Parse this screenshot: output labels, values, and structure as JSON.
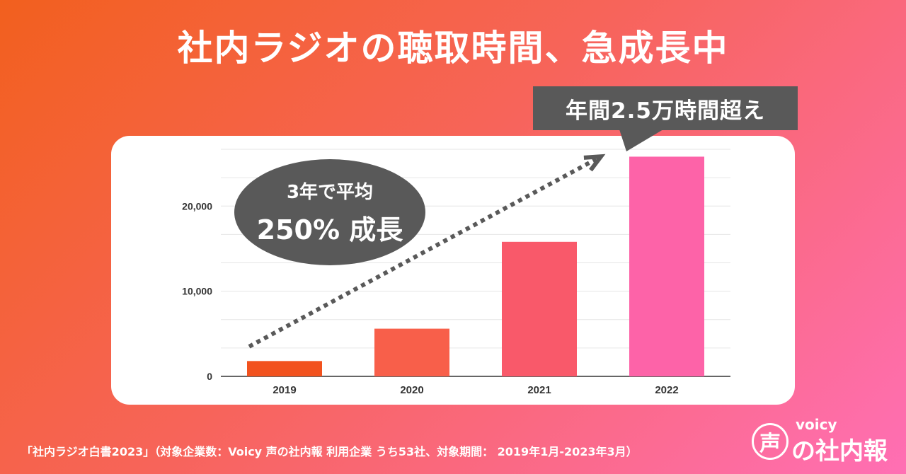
{
  "page": {
    "title": "社内ラジオの聴取時間、急成長中",
    "footer_note": "「社内ラジオ白書2023」（対象企業数：Voicy 声の社内報 利用企業 うち53社、対象期間： 2019年1月-2023年3月）"
  },
  "callout": {
    "text": "年間2.5万時間超え"
  },
  "growth_bubble": {
    "line1": "3年で平均",
    "line2": "250% 成長"
  },
  "logo": {
    "mark": "声",
    "brand": "voicy",
    "name": "の社内報"
  },
  "colors": {
    "bar_2019": "#f2521e",
    "bar_2020": "#f85f4a",
    "bar_2021": "#f9596a",
    "bar_2022": "#fd63a8",
    "annotation_gray": "#595959",
    "grid": "#e6e6e6"
  },
  "chart_data": {
    "type": "bar",
    "title": "",
    "xlabel": "",
    "ylabel": "",
    "categories": [
      "2019",
      "2020",
      "2021",
      "2022"
    ],
    "values": [
      1800,
      5600,
      15800,
      25800
    ],
    "ylim": [
      0,
      27000
    ],
    "yticks": [
      0,
      10000,
      20000
    ],
    "ytick_labels": [
      "0",
      "10,000",
      "20,000"
    ],
    "gridline_values": [
      3333,
      6667,
      13333,
      16667,
      23333,
      26667
    ],
    "grid": true,
    "trend_arrow": {
      "from": [
        "2019",
        3500
      ],
      "to": [
        "2022",
        25500
      ]
    }
  }
}
